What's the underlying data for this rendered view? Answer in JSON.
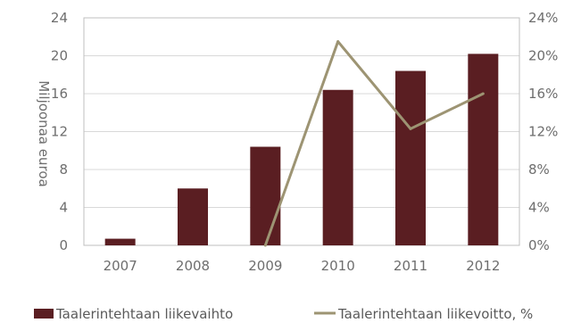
{
  "chart_data": {
    "type": "bar",
    "categories": [
      "2007",
      "2008",
      "2009",
      "2010",
      "2011",
      "2012"
    ],
    "series": [
      {
        "name": "Taalerintehtaan liikevaihto",
        "type": "bar",
        "axis": "left",
        "values": [
          0.7,
          6.0,
          10.4,
          16.4,
          18.4,
          20.2
        ]
      },
      {
        "name": "Taalerintehtaan liikevoitto, %",
        "type": "line",
        "axis": "right",
        "values": [
          null,
          null,
          0.0,
          21.5,
          12.3,
          16.0
        ]
      }
    ],
    "ylabel": "Miljoonaa euroa",
    "ylim": [
      0,
      24
    ],
    "yticks": [
      "0",
      "4",
      "8",
      "12",
      "16",
      "20",
      "24"
    ],
    "y2lim": [
      0,
      24
    ],
    "y2ticks": [
      "0%",
      "4%",
      "8%",
      "12%",
      "16%",
      "20%",
      "24%"
    ],
    "grid": true,
    "legend_position": "bottom",
    "colors": {
      "bar": "#5a1e22",
      "line": "#9d9473",
      "grid": "#d9d9d9",
      "text": "#6e6e6e"
    }
  }
}
